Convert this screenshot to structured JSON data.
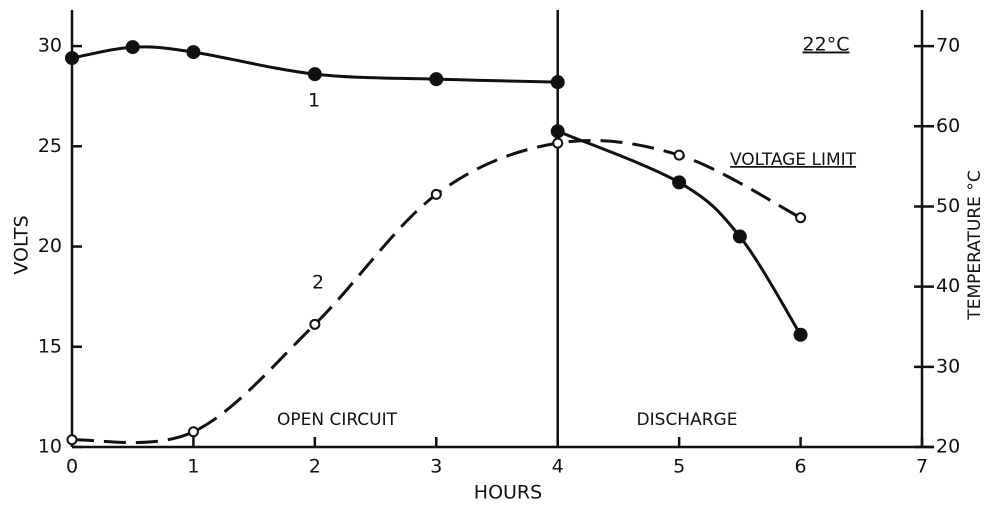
{
  "chart_data": {
    "type": "line",
    "x_label": "HOURS",
    "y_label": "VOLTS",
    "y2_label": "TEMPERATURE °C",
    "annotations": [
      "22°C",
      "VOLTAGE LIMIT",
      "OPEN CIRCUIT",
      "DISCHARGE",
      "1",
      "2"
    ],
    "vline": 4,
    "xlim": [
      0,
      7.1
    ],
    "xticks": [
      0,
      1,
      2,
      3,
      4,
      5,
      6,
      7
    ],
    "ylim": [
      10,
      31.8
    ],
    "yticks": [
      10,
      15,
      20,
      25,
      30
    ],
    "y2lim": [
      20,
      74.5
    ],
    "y2ticks": [
      20,
      30,
      40,
      50,
      60,
      70
    ],
    "series": [
      {
        "name": "1",
        "color": "#111",
        "style": "solid",
        "marker": "filled",
        "x": [
          0,
          0.5,
          1,
          2,
          3,
          4
        ],
        "values": [
          29.4,
          29.95,
          29.7,
          28.6,
          28.35,
          28.2
        ]
      },
      {
        "color": "#111",
        "style": "solid",
        "marker": "filled",
        "x": [
          4,
          5,
          5.5,
          6
        ],
        "values": [
          25.75,
          23.2,
          20.5,
          15.6
        ]
      },
      {
        "name": "2",
        "color": "#111",
        "style": "dashed",
        "marker": "open",
        "axis": "y2",
        "x": [
          0,
          1,
          2,
          3,
          4,
          5,
          6
        ],
        "values": [
          20.9,
          21.9,
          35.3,
          51.5,
          57.9,
          56.4,
          48.6
        ]
      }
    ]
  }
}
